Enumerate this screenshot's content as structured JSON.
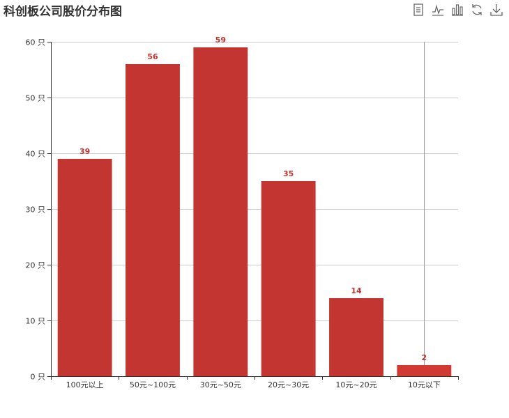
{
  "title": "科创板公司股价分布图",
  "toolbox": [
    {
      "name": "data-view-icon"
    },
    {
      "name": "line-chart-icon"
    },
    {
      "name": "bar-chart-icon"
    },
    {
      "name": "restore-icon"
    },
    {
      "name": "save-image-icon"
    }
  ],
  "colors": {
    "bar": "#c23531",
    "bar_last": "#d03a33",
    "label": "#c23531",
    "grid": "#cccccc",
    "axis": "#333333",
    "pointer": "#999999"
  },
  "chart_data": {
    "type": "bar",
    "title": "科创板公司股价分布图",
    "categories": [
      "100元以上",
      "50元~100元",
      "30元~50元",
      "20元~30元",
      "10元~20元",
      "10元以下"
    ],
    "values": [
      39,
      56,
      59,
      35,
      14,
      2
    ],
    "ylim": [
      0,
      60
    ],
    "yticks": [
      0,
      10,
      20,
      30,
      40,
      50,
      60
    ],
    "y_unit": "只",
    "grid": true,
    "legend": "none"
  }
}
